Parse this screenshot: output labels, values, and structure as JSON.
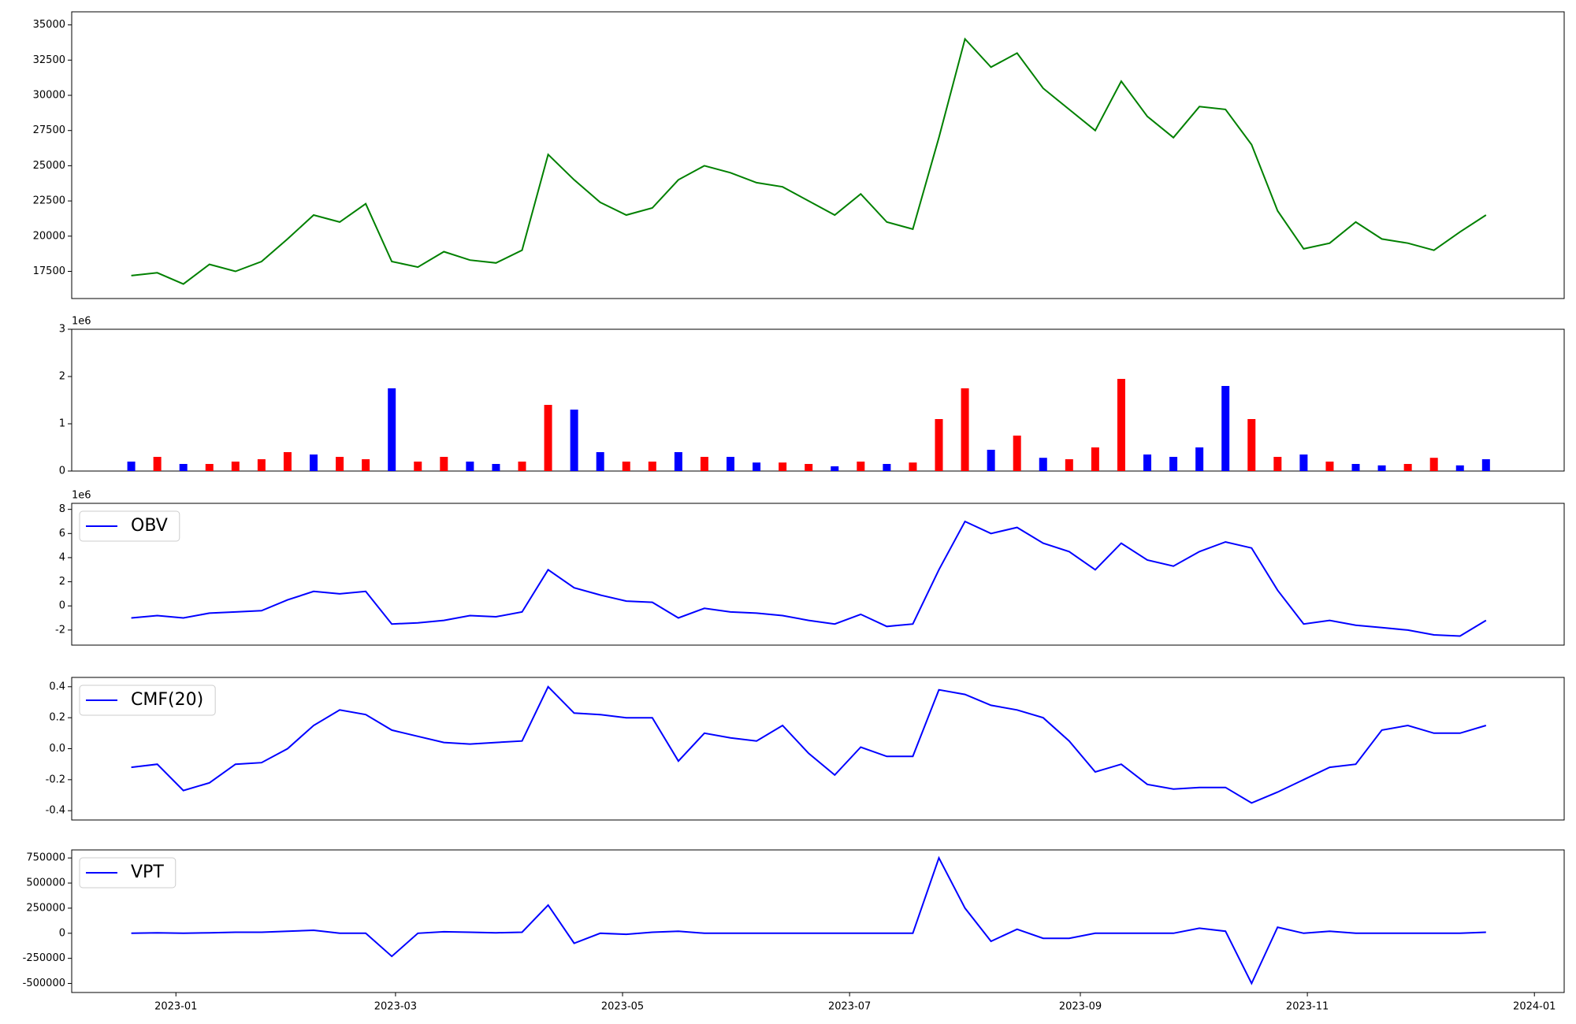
{
  "chart_data": [
    {
      "type": "line",
      "color": "green",
      "x": [
        "2022-12-20",
        "2022-12-27",
        "2023-01-03",
        "2023-01-10",
        "2023-01-17",
        "2023-01-24",
        "2023-01-31",
        "2023-02-07",
        "2023-02-14",
        "2023-02-21",
        "2023-02-28",
        "2023-03-07",
        "2023-03-14",
        "2023-03-21",
        "2023-03-28",
        "2023-04-04",
        "2023-04-11",
        "2023-04-18",
        "2023-04-25",
        "2023-05-02",
        "2023-05-09",
        "2023-05-16",
        "2023-05-23",
        "2023-05-30",
        "2023-06-06",
        "2023-06-13",
        "2023-06-20",
        "2023-06-27",
        "2023-07-04",
        "2023-07-11",
        "2023-07-18",
        "2023-07-25",
        "2023-08-01",
        "2023-08-08",
        "2023-08-15",
        "2023-08-22",
        "2023-08-29",
        "2023-09-05",
        "2023-09-12",
        "2023-09-19",
        "2023-09-26",
        "2023-10-03",
        "2023-10-10",
        "2023-10-17",
        "2023-10-24",
        "2023-10-31",
        "2023-11-07",
        "2023-11-14",
        "2023-11-21",
        "2023-11-28",
        "2023-12-05",
        "2023-12-12",
        "2023-12-19"
      ],
      "values": [
        17200,
        17400,
        16600,
        18000,
        17500,
        18200,
        19800,
        21500,
        21000,
        22300,
        18200,
        17800,
        18900,
        18300,
        18100,
        19000,
        25800,
        24000,
        22400,
        21500,
        22000,
        24000,
        25000,
        24500,
        23800,
        23500,
        22500,
        21500,
        23000,
        21000,
        20500,
        27000,
        34000,
        32000,
        33000,
        30500,
        29000,
        27500,
        31000,
        28500,
        27000,
        29200,
        29000,
        26500,
        21800,
        19100,
        19500,
        21000,
        19800,
        19500,
        19000,
        20300,
        21500
      ],
      "xlim": [
        "2022-12-04",
        "2024-01-09"
      ],
      "ylim": [
        15570,
        35930
      ],
      "yticks": [
        17500,
        20000,
        22500,
        25000,
        27500,
        30000,
        32500,
        35000
      ]
    },
    {
      "type": "bar",
      "offset_label": "1e6",
      "x": [
        "2022-12-20",
        "2022-12-27",
        "2023-01-03",
        "2023-01-10",
        "2023-01-17",
        "2023-01-24",
        "2023-01-31",
        "2023-02-07",
        "2023-02-14",
        "2023-02-21",
        "2023-02-28",
        "2023-03-07",
        "2023-03-14",
        "2023-03-21",
        "2023-03-28",
        "2023-04-04",
        "2023-04-11",
        "2023-04-18",
        "2023-04-25",
        "2023-05-02",
        "2023-05-09",
        "2023-05-16",
        "2023-05-23",
        "2023-05-30",
        "2023-06-06",
        "2023-06-13",
        "2023-06-20",
        "2023-06-27",
        "2023-07-04",
        "2023-07-11",
        "2023-07-18",
        "2023-07-25",
        "2023-08-01",
        "2023-08-08",
        "2023-08-15",
        "2023-08-22",
        "2023-08-29",
        "2023-09-05",
        "2023-09-12",
        "2023-09-19",
        "2023-09-26",
        "2023-10-03",
        "2023-10-10",
        "2023-10-17",
        "2023-10-24",
        "2023-10-31",
        "2023-11-07",
        "2023-11-14",
        "2023-11-21",
        "2023-11-28",
        "2023-12-05",
        "2023-12-12",
        "2023-12-19"
      ],
      "values": [
        0.2,
        0.3,
        0.15,
        0.15,
        0.2,
        0.25,
        0.4,
        0.35,
        0.3,
        0.25,
        1.75,
        0.2,
        0.3,
        0.2,
        0.15,
        0.2,
        1.4,
        1.3,
        0.4,
        0.2,
        0.2,
        0.4,
        0.3,
        0.3,
        0.18,
        0.18,
        0.15,
        0.1,
        0.2,
        0.15,
        0.18,
        1.1,
        1.75,
        0.45,
        0.75,
        0.28,
        0.25,
        0.5,
        1.95,
        0.35,
        0.3,
        0.5,
        1.8,
        1.1,
        0.3,
        0.35,
        0.2,
        0.15,
        0.12,
        0.15,
        0.28,
        0.12,
        0.25
      ],
      "colors": [
        "blue",
        "red",
        "blue",
        "red",
        "red",
        "red",
        "red",
        "blue",
        "red",
        "red",
        "blue",
        "red",
        "red",
        "blue",
        "blue",
        "red",
        "red",
        "blue",
        "blue",
        "red",
        "red",
        "blue",
        "red",
        "blue",
        "blue",
        "red",
        "red",
        "blue",
        "red",
        "blue",
        "red",
        "red",
        "red",
        "blue",
        "red",
        "blue",
        "red",
        "red",
        "red",
        "blue",
        "blue",
        "blue",
        "blue",
        "red",
        "red",
        "blue",
        "red",
        "blue",
        "blue",
        "red",
        "red",
        "blue",
        "blue"
      ],
      "xlim": [
        "2022-12-04",
        "2024-01-09"
      ],
      "ylim": [
        0,
        3
      ],
      "yticks": [
        0,
        1,
        2,
        3
      ]
    },
    {
      "type": "line",
      "x": [
        "2022-12-20",
        "2022-12-27",
        "2023-01-03",
        "2023-01-10",
        "2023-01-17",
        "2023-01-24",
        "2023-01-31",
        "2023-02-07",
        "2023-02-14",
        "2023-02-21",
        "2023-02-28",
        "2023-03-07",
        "2023-03-14",
        "2023-03-21",
        "2023-03-28",
        "2023-04-04",
        "2023-04-11",
        "2023-04-18",
        "2023-04-25",
        "2023-05-02",
        "2023-05-09",
        "2023-05-16",
        "2023-05-23",
        "2023-05-30",
        "2023-06-06",
        "2023-06-13",
        "2023-06-20",
        "2023-06-27",
        "2023-07-04",
        "2023-07-11",
        "2023-07-18",
        "2023-07-25",
        "2023-08-01",
        "2023-08-08",
        "2023-08-15",
        "2023-08-22",
        "2023-08-29",
        "2023-09-05",
        "2023-09-12",
        "2023-09-19",
        "2023-09-26",
        "2023-10-03",
        "2023-10-10",
        "2023-10-17",
        "2023-10-24",
        "2023-10-31",
        "2023-11-07",
        "2023-11-14",
        "2023-11-21",
        "2023-11-28",
        "2023-12-05",
        "2023-12-12",
        "2023-12-19"
      ],
      "offset_label": "1e6",
      "series": [
        {
          "name": "OBV",
          "color": "blue",
          "values": [
            -1,
            -0.8,
            -1,
            -0.6,
            -0.5,
            -0.4,
            0.5,
            1.2,
            1.0,
            1.2,
            -1.5,
            -1.4,
            -1.2,
            -0.8,
            -0.9,
            -0.5,
            3.0,
            1.5,
            0.9,
            0.4,
            0.3,
            -1.0,
            -0.2,
            -0.5,
            -0.6,
            -0.8,
            -1.2,
            -1.5,
            -0.7,
            -1.7,
            -1.5,
            3.0,
            7.0,
            6.0,
            6.5,
            5.2,
            4.5,
            3.0,
            5.2,
            3.8,
            3.3,
            4.5,
            5.3,
            4.8,
            1.3,
            -1.5,
            -1.2,
            -1.6,
            -1.8,
            -2.0,
            -2.4,
            -2.5,
            -1.2
          ]
        }
      ],
      "xlim": [
        "2022-12-04",
        "2024-01-09"
      ],
      "ylim": [
        -3.25,
        8.5
      ],
      "yticks": [
        -2,
        0,
        2,
        4,
        6,
        8
      ],
      "legend": "upper left"
    },
    {
      "type": "line",
      "x": [
        "2022-12-20",
        "2022-12-27",
        "2023-01-03",
        "2023-01-10",
        "2023-01-17",
        "2023-01-24",
        "2023-01-31",
        "2023-02-07",
        "2023-02-14",
        "2023-02-21",
        "2023-02-28",
        "2023-03-07",
        "2023-03-14",
        "2023-03-21",
        "2023-03-28",
        "2023-04-04",
        "2023-04-11",
        "2023-04-18",
        "2023-04-25",
        "2023-05-02",
        "2023-05-09",
        "2023-05-16",
        "2023-05-23",
        "2023-05-30",
        "2023-06-06",
        "2023-06-13",
        "2023-06-20",
        "2023-06-27",
        "2023-07-04",
        "2023-07-11",
        "2023-07-18",
        "2023-07-25",
        "2023-08-01",
        "2023-08-08",
        "2023-08-15",
        "2023-08-22",
        "2023-08-29",
        "2023-09-05",
        "2023-09-12",
        "2023-09-19",
        "2023-09-26",
        "2023-10-03",
        "2023-10-10",
        "2023-10-17",
        "2023-10-24",
        "2023-10-31",
        "2023-11-07",
        "2023-11-14",
        "2023-11-21",
        "2023-11-28",
        "2023-12-05",
        "2023-12-12",
        "2023-12-19"
      ],
      "series": [
        {
          "name": "CMF(20)",
          "color": "blue",
          "values": [
            -0.12,
            -0.1,
            -0.27,
            -0.22,
            -0.1,
            -0.09,
            0.0,
            0.15,
            0.25,
            0.22,
            0.12,
            0.08,
            0.04,
            0.03,
            0.04,
            0.05,
            0.4,
            0.23,
            0.22,
            0.2,
            0.2,
            -0.08,
            0.1,
            0.07,
            0.05,
            0.15,
            -0.03,
            -0.17,
            0.01,
            -0.05,
            -0.05,
            0.38,
            0.35,
            0.28,
            0.25,
            0.2,
            0.05,
            -0.15,
            -0.1,
            -0.23,
            -0.26,
            -0.25,
            -0.25,
            -0.35,
            -0.28,
            -0.2,
            -0.12,
            -0.1,
            0.12,
            0.15,
            0.1,
            0.1,
            0.15
          ]
        }
      ],
      "xlim": [
        "2022-12-04",
        "2024-01-09"
      ],
      "ylim": [
        -0.46,
        0.46
      ],
      "yticks": [
        {
          "value": -0.4,
          "label": "-0.4"
        },
        {
          "value": -0.2,
          "label": "-0.2"
        },
        {
          "value": 0,
          "label": "0.0"
        },
        {
          "value": 0.2,
          "label": "0.2"
        },
        {
          "value": 0.4,
          "label": "0.4"
        }
      ],
      "legend": "upper left"
    },
    {
      "type": "line",
      "x": [
        "2022-12-20",
        "2022-12-27",
        "2023-01-03",
        "2023-01-10",
        "2023-01-17",
        "2023-01-24",
        "2023-01-31",
        "2023-02-07",
        "2023-02-14",
        "2023-02-21",
        "2023-02-28",
        "2023-03-07",
        "2023-03-14",
        "2023-03-21",
        "2023-03-28",
        "2023-04-04",
        "2023-04-11",
        "2023-04-18",
        "2023-04-25",
        "2023-05-02",
        "2023-05-09",
        "2023-05-16",
        "2023-05-23",
        "2023-05-30",
        "2023-06-06",
        "2023-06-13",
        "2023-06-20",
        "2023-06-27",
        "2023-07-04",
        "2023-07-11",
        "2023-07-18",
        "2023-07-25",
        "2023-08-01",
        "2023-08-08",
        "2023-08-15",
        "2023-08-22",
        "2023-08-29",
        "2023-09-05",
        "2023-09-12",
        "2023-09-19",
        "2023-09-26",
        "2023-10-03",
        "2023-10-10",
        "2023-10-17",
        "2023-10-24",
        "2023-10-31",
        "2023-11-07",
        "2023-11-14",
        "2023-11-21",
        "2023-11-28",
        "2023-12-05",
        "2023-12-12",
        "2023-12-19"
      ],
      "series": [
        {
          "name": "VPT",
          "color": "blue",
          "values": [
            0,
            5000,
            0,
            5000,
            10000,
            10000,
            20000,
            30000,
            0,
            0,
            -230000,
            0,
            15000,
            10000,
            5000,
            10000,
            280000,
            -100000,
            0,
            -10000,
            10000,
            20000,
            0,
            0,
            0,
            0,
            0,
            0,
            0,
            0,
            0,
            750000,
            250000,
            -80000,
            40000,
            -50000,
            -50000,
            0,
            0,
            0,
            0,
            50000,
            20000,
            -500000,
            60000,
            0,
            20000,
            0,
            0,
            0,
            0,
            0,
            10000
          ]
        }
      ],
      "xlim": [
        "2022-12-04",
        "2024-01-09"
      ],
      "ylim": [
        -590000,
        830000
      ],
      "yticks": [
        -500000,
        -250000,
        0,
        250000,
        500000,
        750000
      ],
      "legend": "upper left",
      "xticks": [
        {
          "value": "2023-01-01",
          "label": "2023-01"
        },
        {
          "value": "2023-03-01",
          "label": "2023-03"
        },
        {
          "value": "2023-05-01",
          "label": "2023-05"
        },
        {
          "value": "2023-07-01",
          "label": "2023-07"
        },
        {
          "value": "2023-09-01",
          "label": "2023-09"
        },
        {
          "value": "2023-11-01",
          "label": "2023-11"
        },
        {
          "value": "2024-01-01",
          "label": "2024-01"
        }
      ]
    }
  ]
}
